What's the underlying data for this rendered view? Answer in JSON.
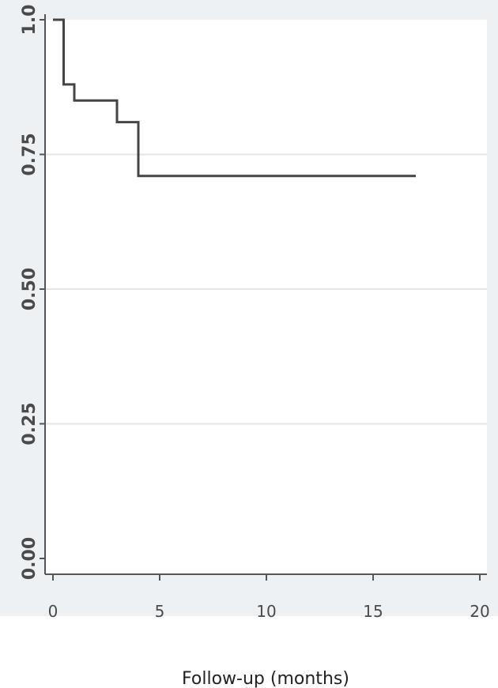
{
  "chart_data": {
    "type": "line",
    "step": true,
    "title": "",
    "xlabel": "Follow-up (months)",
    "ylabel": "",
    "xlim": [
      0,
      20
    ],
    "ylim": [
      0,
      1
    ],
    "x_ticks": [
      0,
      5,
      10,
      15,
      20
    ],
    "x_tick_labels": [
      "0",
      "5",
      "10",
      "15",
      "20"
    ],
    "y_ticks": [
      0,
      0.25,
      0.5,
      0.75,
      1.0
    ],
    "y_tick_labels": [
      "0.00",
      "0.25",
      "0.50",
      "0.75",
      "1.0"
    ],
    "grid": "horizontal",
    "legend": "none",
    "series": [
      {
        "x": [
          0,
          0.5,
          1,
          3,
          4,
          17
        ],
        "y": [
          1.0,
          0.88,
          0.85,
          0.81,
          0.71,
          0.71
        ],
        "color": "#444444"
      }
    ]
  }
}
